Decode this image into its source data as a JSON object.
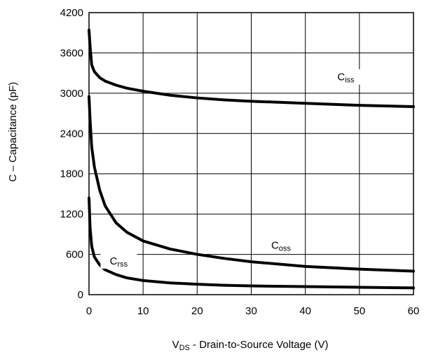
{
  "chart_data": {
    "type": "line",
    "title": "",
    "xlabel": {
      "main": "V",
      "subscript": "DS",
      "rest": " - Drain-to-Source Voltage (V)"
    },
    "ylabel": "C – Capacitance (pF)",
    "xlim": [
      0,
      60
    ],
    "ylim": [
      0,
      4200
    ],
    "xticks": [
      "0",
      "10",
      "20",
      "30",
      "40",
      "50",
      "60"
    ],
    "yticks": [
      "0",
      "600",
      "1200",
      "1800",
      "2400",
      "3000",
      "3600",
      "4200"
    ],
    "grid": true,
    "series": [
      {
        "name": "Ciss",
        "label_main": "C",
        "label_sub": "iss",
        "color": "#000000",
        "x": [
          0,
          0.2,
          0.5,
          1,
          2,
          3,
          5,
          7,
          10,
          15,
          20,
          25,
          30,
          40,
          50,
          60
        ],
        "y": [
          3940,
          3700,
          3420,
          3320,
          3230,
          3180,
          3120,
          3075,
          3030,
          2970,
          2930,
          2900,
          2880,
          2850,
          2820,
          2800
        ]
      },
      {
        "name": "Coss",
        "label_main": "C",
        "label_sub": "oss",
        "color": "#000000",
        "x": [
          0,
          0.2,
          0.5,
          1,
          2,
          3,
          5,
          7,
          10,
          15,
          20,
          25,
          30,
          40,
          50,
          60
        ],
        "y": [
          2950,
          2600,
          2200,
          1900,
          1550,
          1320,
          1070,
          930,
          800,
          680,
          600,
          540,
          490,
          420,
          380,
          350
        ]
      },
      {
        "name": "Crss",
        "label_main": "C",
        "label_sub": "rss",
        "color": "#000000",
        "x": [
          0,
          0.2,
          0.5,
          1,
          2,
          3,
          5,
          7,
          10,
          15,
          20,
          25,
          30,
          40,
          50,
          60
        ],
        "y": [
          1440,
          1000,
          720,
          560,
          440,
          370,
          300,
          250,
          210,
          175,
          155,
          140,
          130,
          120,
          110,
          100
        ]
      }
    ],
    "series_label_anchor": [
      {
        "x": 47.5,
        "y": 3190
      },
      {
        "x": 35.5,
        "y": 685
      },
      {
        "x": 5.5,
        "y": 450
      }
    ]
  }
}
